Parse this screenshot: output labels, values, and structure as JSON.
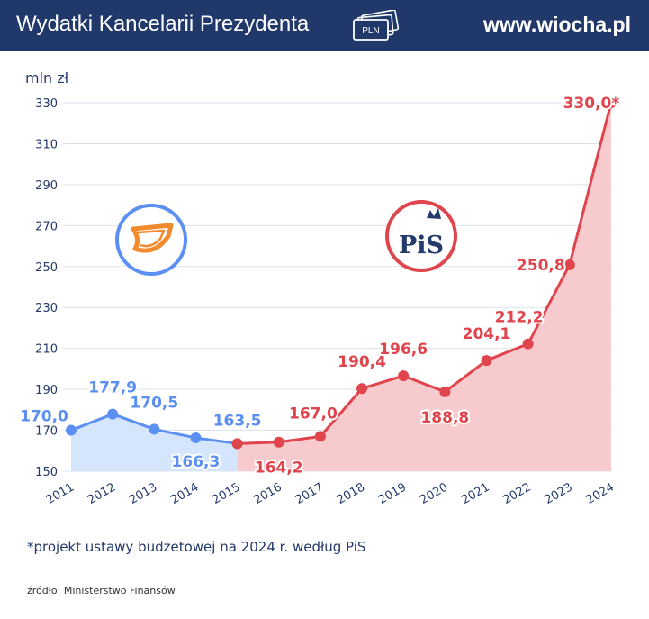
{
  "header": {
    "title": "Wydatki Kancelarii Prezydenta",
    "pln_badge": "PLN",
    "watermark": "www.wiocha.pl"
  },
  "logos": {
    "left": "PO",
    "right_text": "PiS"
  },
  "footnote": "*projekt ustawy budżetowej na 2024 r. według PiS",
  "source": "źródło: Ministerstwo Finansów",
  "colors": {
    "header_bg": "#21386b",
    "blue_series": "#5b8ff2",
    "blue_fill": "#d5e5fb",
    "red_series": "#e0444c",
    "red_fill": "#f7cbcd",
    "text_dark": "#233a6b",
    "po_orange": "#f28a2e"
  },
  "chart_data": {
    "type": "line",
    "ylabel": "mln zł",
    "ylim": [
      150,
      330
    ],
    "yticks": [
      "150",
      "170",
      "190",
      "210",
      "230",
      "250",
      "270",
      "290",
      "310",
      "330"
    ],
    "categories": [
      "2011",
      "2012",
      "2013",
      "2014",
      "2015",
      "2016",
      "2017",
      "2018",
      "2019",
      "2020",
      "2021",
      "2022",
      "2023",
      "2024"
    ],
    "grid": true,
    "series": [
      {
        "color": "blue",
        "x": [
          "2011",
          "2012",
          "2013",
          "2014",
          "2015"
        ],
        "values": [
          170.0,
          177.9,
          170.5,
          166.3,
          163.5
        ],
        "labels": [
          "170,0",
          "177,9",
          "170,5",
          "166,3",
          "163,5"
        ]
      },
      {
        "color": "red",
        "x": [
          "2015",
          "2016",
          "2017",
          "2018",
          "2019",
          "2020",
          "2021",
          "2022",
          "2023",
          "2024"
        ],
        "values": [
          163.5,
          164.2,
          167.0,
          190.4,
          196.6,
          188.8,
          204.1,
          212.2,
          250.8,
          330.0
        ],
        "labels": [
          null,
          "164,2",
          "167,0",
          "190,4",
          "196,6",
          "188,8",
          "204,1",
          "212,2",
          "250,8",
          "330,0*"
        ]
      }
    ]
  }
}
